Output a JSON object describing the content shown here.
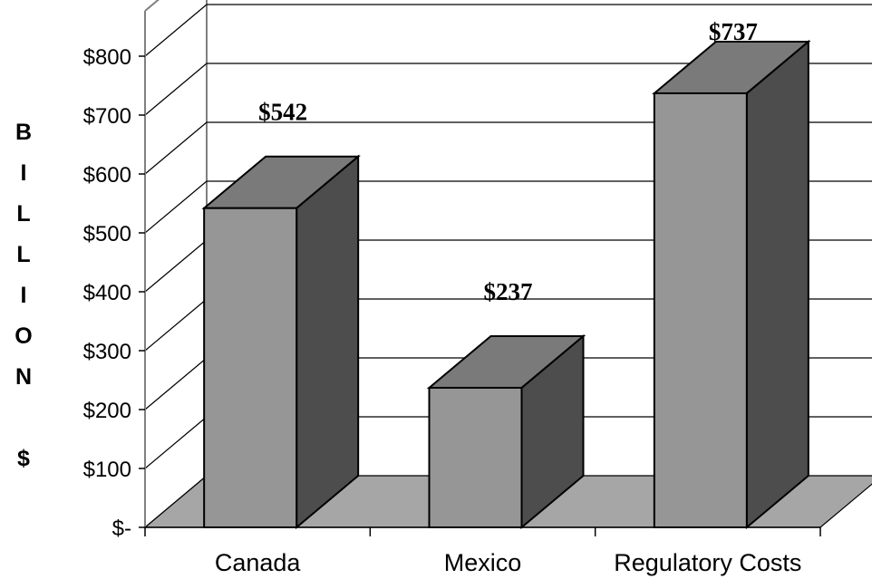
{
  "chart_data": {
    "type": "bar",
    "categories": [
      "Canada",
      "Mexico",
      "Regulatory Costs"
    ],
    "values": [
      542,
      237,
      737
    ],
    "data_labels": [
      "$542",
      "$237",
      "$737"
    ],
    "ylabel": "BILLION $",
    "ylabel_letters": [
      "B",
      "I",
      "L",
      "L",
      "I",
      "O",
      "N",
      "",
      "$"
    ],
    "yticks": [
      0,
      100,
      200,
      300,
      400,
      500,
      600,
      700,
      800
    ],
    "ytick_labels": [
      "$-",
      "$100",
      "$200",
      "$300",
      "$400",
      "$500",
      "$600",
      "$700",
      "$800"
    ],
    "ylim": [
      0,
      800
    ],
    "grid": true,
    "style": "3d",
    "colors": {
      "bar_front": "#969696",
      "bar_top": "#7a7a7a",
      "bar_side": "#4d4d4d",
      "floor": "#a6a6a6"
    }
  }
}
